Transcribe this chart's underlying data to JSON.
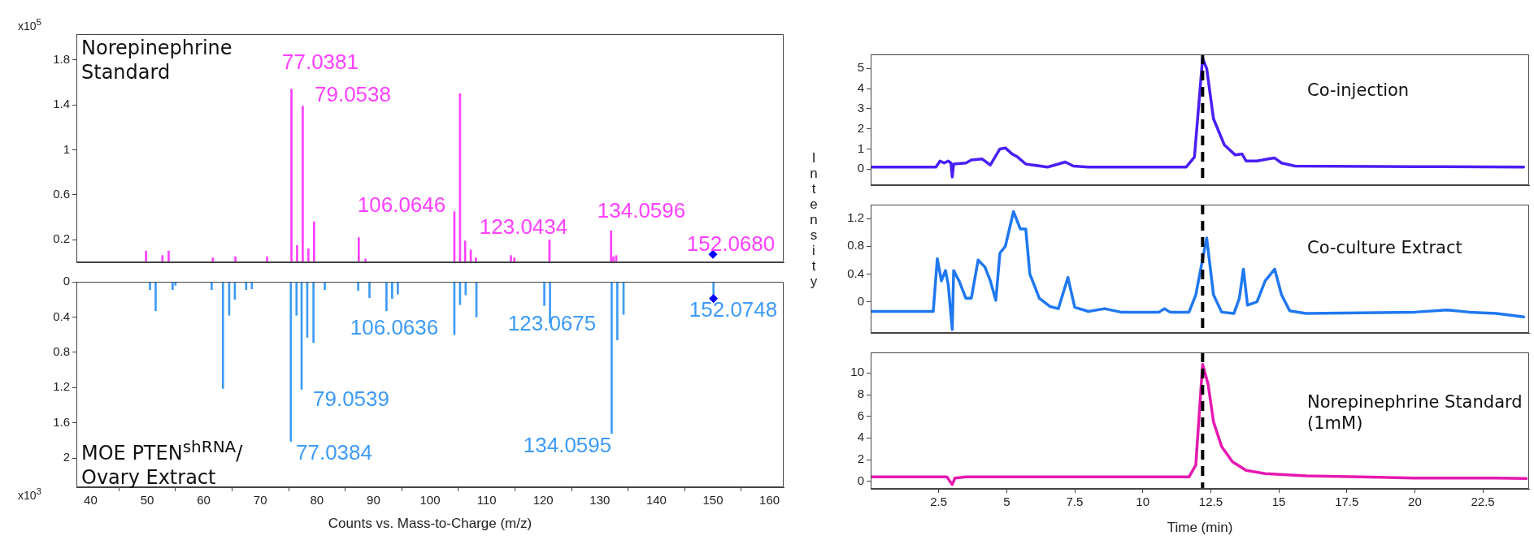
{
  "chart_data": [
    {
      "type": "bar",
      "title": "Norepinephrine Standard",
      "ylabel": "x10$^{5}$",
      "xlim": [
        37.5,
        162.5
      ],
      "xticks": [
        40,
        50,
        60,
        70,
        80,
        90,
        100,
        110,
        120,
        130,
        140,
        150,
        160
      ],
      "ylim": [
        0,
        2.03
      ],
      "yticks": [
        0.2,
        0.6,
        1,
        1.4,
        1.8
      ],
      "tick_labels": "y",
      "marker": "diamond",
      "series": [
        {
          "color": "#ff40ff",
          "x": [
            49.8,
            52.7,
            53.8,
            61.6,
            65.6,
            71.2,
            75.5,
            76.5,
            77.5,
            78.5,
            79.5,
            87.4,
            88.6,
            104.3,
            105.3,
            106.2,
            107.2,
            108.1,
            114.3,
            114.9,
            121.1,
            132.0,
            132.4,
            132.9
          ],
          "values": [
            0.1,
            0.06,
            0.1,
            0.04,
            0.05,
            0.05,
            1.54,
            0.15,
            1.39,
            0.12,
            0.36,
            0.22,
            0.03,
            0.45,
            1.5,
            0.19,
            0.11,
            0.04,
            0.06,
            0.04,
            0.2,
            0.28,
            0.05,
            0.06
          ]
        },
        {
          "type": "scatter",
          "color": "#0000ff",
          "x": [
            150
          ],
          "values": [
            0.07
          ]
        }
      ],
      "annotations": [
        "77.0381",
        "79.0538",
        "106.0646",
        "123.0434",
        "134.0596",
        "152.0680"
      ]
    },
    {
      "type": "bar",
      "title": "MOE PTEN$^{shRNA}$/ Ovary Extract",
      "ylabel": "x10$^{3}$",
      "xlabel": "Counts vs. Mass-to-Charge (m/z)",
      "xlim": [
        37.5,
        162.5
      ],
      "xticks": [
        40,
        50,
        60,
        70,
        80,
        90,
        100,
        110,
        120,
        130,
        140,
        150,
        160
      ],
      "ylim": [
        2.33,
        0
      ],
      "yticks": [
        0,
        0.4,
        0.8,
        1.2,
        1.6,
        2
      ],
      "marker": "diamond",
      "series": [
        {
          "color": "#3d9bf5",
          "x": [
            50.5,
            51.5,
            54.5,
            55.0,
            61.4,
            63.4,
            64.5,
            65.5,
            67.5,
            68.5,
            75.4,
            76.4,
            77.3,
            78.3,
            79.4,
            81.4,
            87.3,
            89.3,
            92.3,
            93.3,
            94.3,
            104.3,
            105.3,
            106.3,
            108.2,
            120.2,
            121.2,
            132.1,
            133.1,
            134.2,
            150.1
          ],
          "values": [
            0.09,
            0.33,
            0.09,
            0.04,
            0.09,
            1.21,
            0.38,
            0.2,
            0.09,
            0.08,
            1.81,
            0.38,
            1.22,
            0.63,
            0.69,
            0.09,
            0.1,
            0.18,
            0.33,
            0.19,
            0.14,
            0.6,
            0.26,
            0.15,
            0.4,
            0.27,
            0.47,
            1.72,
            0.66,
            0.37,
            0.19
          ]
        },
        {
          "type": "scatter",
          "color": "#0000ff",
          "x": [
            150.1
          ],
          "values": [
            0.19
          ]
        }
      ],
      "annotations": [
        "106.0636",
        "123.0675",
        "152.0748",
        "79.0539",
        "134.0595",
        "77.0384"
      ]
    },
    {
      "type": "line",
      "title": "Co-injection",
      "xlim": [
        0,
        24.2
      ],
      "xticks": [
        2.5,
        5,
        7.5,
        10,
        12.5,
        15,
        17.5,
        20,
        22.5
      ],
      "ylim": [
        -0.8,
        5.7
      ],
      "yticks": [
        0,
        1,
        2,
        3,
        4,
        5
      ],
      "tick_labels": "y",
      "series": [
        {
          "color": "#4a1ff5",
          "x": [
            0,
            2.4,
            2.55,
            2.7,
            2.85,
            2.95,
            3.0,
            3.05,
            3.5,
            3.7,
            4.1,
            4.4,
            4.75,
            4.95,
            5.2,
            5.4,
            5.7,
            6.5,
            6.9,
            7.15,
            7.45,
            8.0,
            11.6,
            11.9,
            12.2,
            12.35,
            12.6,
            13.0,
            13.4,
            13.65,
            13.8,
            14.2,
            14.6,
            14.85,
            15.1,
            15.6,
            20,
            24.0
          ],
          "values": [
            0.1,
            0.1,
            0.4,
            0.3,
            0.4,
            0.3,
            -0.4,
            0.25,
            0.3,
            0.45,
            0.5,
            0.2,
            1.0,
            1.05,
            0.75,
            0.6,
            0.25,
            0.1,
            0.25,
            0.35,
            0.15,
            0.1,
            0.1,
            0.6,
            5.5,
            5.0,
            2.5,
            1.2,
            0.7,
            0.75,
            0.4,
            0.4,
            0.5,
            0.55,
            0.3,
            0.15,
            0.12,
            0.1
          ]
        }
      ],
      "ref_lines": [
        {
          "axis": "x",
          "value": 12.2,
          "color": "#000000",
          "line_style": "dashed"
        }
      ]
    },
    {
      "type": "line",
      "title": "Co-culture Extract",
      "ylabel": "Intensity",
      "xlim": [
        0,
        24.2
      ],
      "xticks": [
        2.5,
        5,
        7.5,
        10,
        12.5,
        15,
        17.5,
        20,
        22.5
      ],
      "ylim": [
        -0.45,
        1.4
      ],
      "yticks": [
        0,
        0.4,
        0.8,
        1.2
      ],
      "tick_labels": "y",
      "series": [
        {
          "color": "#1f78f0",
          "x": [
            0,
            2.3,
            2.45,
            2.6,
            2.75,
            2.85,
            3.0,
            3.05,
            3.25,
            3.5,
            3.7,
            3.95,
            4.2,
            4.4,
            4.6,
            4.75,
            4.95,
            5.25,
            5.5,
            5.7,
            5.85,
            6.2,
            6.6,
            6.9,
            7.25,
            7.5,
            8.0,
            8.6,
            9.2,
            10.6,
            10.8,
            11.0,
            11.7,
            11.95,
            12.35,
            12.6,
            12.9,
            13.35,
            13.55,
            13.7,
            13.85,
            14.2,
            14.5,
            14.85,
            15.1,
            15.4,
            16,
            20,
            21.2,
            22.0,
            23.0,
            24.0
          ],
          "values": [
            -0.14,
            -0.14,
            0.62,
            0.3,
            0.45,
            0.25,
            -0.4,
            0.45,
            0.3,
            0.05,
            0.05,
            0.6,
            0.5,
            0.3,
            0.02,
            0.7,
            0.8,
            1.3,
            1.05,
            1.05,
            0.4,
            0.05,
            -0.07,
            -0.1,
            0.35,
            -0.08,
            -0.14,
            -0.1,
            -0.15,
            -0.15,
            -0.1,
            -0.15,
            -0.15,
            0.1,
            0.92,
            0.1,
            -0.15,
            -0.17,
            0.05,
            0.47,
            -0.05,
            0.0,
            0.3,
            0.47,
            0.1,
            -0.13,
            -0.17,
            -0.15,
            -0.12,
            -0.15,
            -0.17,
            -0.22
          ]
        }
      ],
      "ref_lines": [
        {
          "axis": "x",
          "value": 12.2,
          "color": "#000000",
          "line_style": "dashed"
        }
      ]
    },
    {
      "type": "line",
      "title": "Norepinephrine Standard (1mM)",
      "xlabel": "Time (min)",
      "xlim": [
        0,
        24.2
      ],
      "xticks": [
        2.5,
        5,
        7.5,
        10,
        12.5,
        15,
        17.5,
        20,
        22.5
      ],
      "ylim": [
        -0.7,
        11.9
      ],
      "yticks": [
        0,
        2,
        4,
        6,
        8,
        10
      ],
      "series": [
        {
          "color": "#e619b0",
          "x": [
            0,
            2.8,
            3.0,
            3.1,
            3.5,
            11.7,
            11.95,
            12.2,
            12.4,
            12.6,
            12.9,
            13.3,
            13.8,
            14.5,
            16,
            18,
            20,
            23,
            24.1
          ],
          "values": [
            0.4,
            0.4,
            -0.3,
            0.3,
            0.4,
            0.4,
            1.5,
            10.8,
            9.0,
            5.5,
            3.2,
            1.8,
            1.0,
            0.7,
            0.5,
            0.4,
            0.3,
            0.3,
            0.25
          ]
        }
      ],
      "ref_lines": [
        {
          "axis": "x",
          "value": 12.2,
          "color": "#000000",
          "line_style": "dashed"
        }
      ]
    }
  ]
}
